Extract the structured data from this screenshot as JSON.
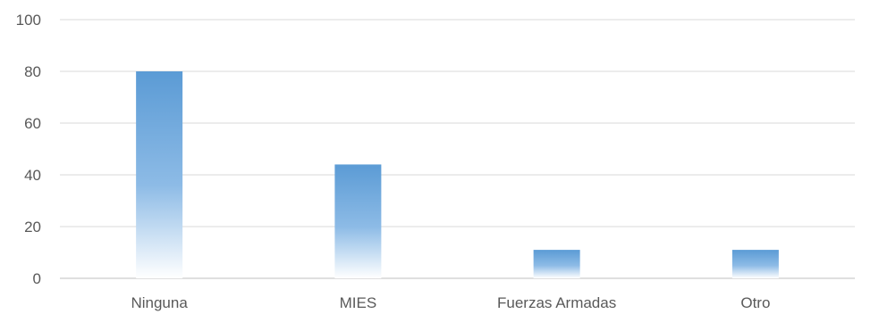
{
  "chart_data": {
    "type": "bar",
    "categories": [
      "Ninguna",
      "MIES",
      "Fuerzas Armadas",
      "Otro"
    ],
    "values": [
      80,
      44,
      11,
      11
    ],
    "ylim": [
      0,
      100
    ],
    "yticks": [
      0,
      20,
      40,
      60,
      80,
      100
    ],
    "grid": true,
    "legend": "none",
    "bar_color_top": "#5b9bd5",
    "bar_color_bottom": "#ffffff",
    "gridline_color": "#d9d9d9",
    "axis_color": "#bfbfbf",
    "label_color": "#595959"
  }
}
